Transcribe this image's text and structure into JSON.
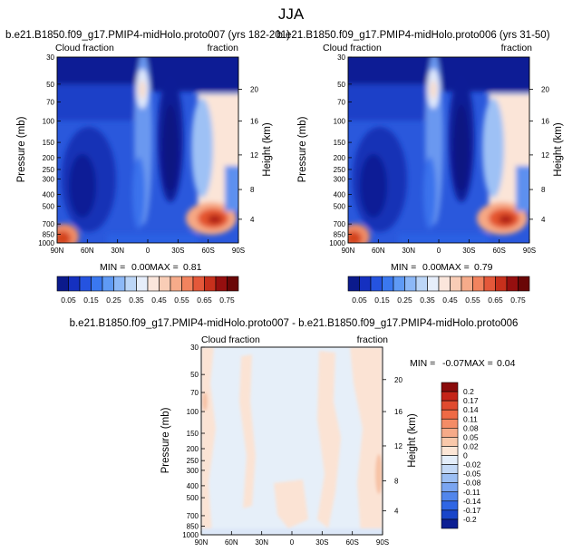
{
  "figure_title": "JJA",
  "chart_data": [
    {
      "type": "heatmap",
      "title": "b.e21.B1850.f09_g17.PMIP4-midHolo.proto007 (yrs 182-201)",
      "left_label": "Cloud fraction",
      "right_label": "fraction",
      "ylabel": "Pressure (mb)",
      "ylabel_right": "Height (km)",
      "x_ticks": [
        "90N",
        "60N",
        "30N",
        "0",
        "30S",
        "60S",
        "90S"
      ],
      "y_ticks": [
        "30",
        "50",
        "70",
        "100",
        "150",
        "200",
        "250",
        "300",
        "400",
        "500",
        "700",
        "850",
        "1000"
      ],
      "y_ticks_right": [
        "20",
        "16",
        "12",
        "8",
        "4"
      ],
      "min_label": "MIN =",
      "min": "0.00",
      "max_label": "MAX =",
      "max": "0.81",
      "zlim": [
        0,
        0.81
      ]
    },
    {
      "type": "heatmap",
      "title": "b.e21.B1850.f09_g17.PMIP4-midHolo.proto006 (yrs 31-50)",
      "left_label": "Cloud fraction",
      "right_label": "fraction",
      "ylabel": "Pressure (mb)",
      "ylabel_right": "Height (km)",
      "x_ticks": [
        "90N",
        "60N",
        "30N",
        "0",
        "30S",
        "60S",
        "90S"
      ],
      "y_ticks": [
        "30",
        "50",
        "70",
        "100",
        "150",
        "200",
        "250",
        "300",
        "400",
        "500",
        "700",
        "850",
        "1000"
      ],
      "y_ticks_right": [
        "20",
        "16",
        "12",
        "8",
        "4"
      ],
      "min_label": "MIN =",
      "min": "0.00",
      "max_label": "MAX =",
      "max": "0.79",
      "zlim": [
        0,
        0.79
      ]
    },
    {
      "type": "heatmap",
      "title": "b.e21.B1850.f09_g17.PMIP4-midHolo.proto007 - b.e21.B1850.f09_g17.PMIP4-midHolo.proto006",
      "left_label": "Cloud fraction",
      "right_label": "fraction",
      "ylabel": "Pressure (mb)",
      "ylabel_right": "Height (km)",
      "x_ticks": [
        "90N",
        "60N",
        "30N",
        "0",
        "30S",
        "60S",
        "90S"
      ],
      "y_ticks": [
        "30",
        "50",
        "70",
        "100",
        "150",
        "200",
        "250",
        "300",
        "400",
        "500",
        "700",
        "850",
        "1000"
      ],
      "y_ticks_right": [
        "20",
        "16",
        "12",
        "8",
        "4"
      ],
      "min_label": "MIN =",
      "min": "-0.07",
      "max_label": "MAX =",
      "max": "0.04",
      "zlim": [
        -0.07,
        0.04
      ]
    }
  ],
  "colorbar_top": {
    "labels": [
      "0.05",
      "0.15",
      "0.25",
      "0.35",
      "0.45",
      "0.55",
      "0.65",
      "0.75"
    ],
    "colors": [
      "#0b1a8c",
      "#1530c0",
      "#2553e0",
      "#3a78f0",
      "#5f9af5",
      "#8cb8f7",
      "#bcd6f7",
      "#e6eefb",
      "#fbe6dc",
      "#f9cdb6",
      "#f6ab8a",
      "#f2835e",
      "#e4583a",
      "#c7301c",
      "#960f0f",
      "#6a0606"
    ]
  },
  "colorbar_diff": {
    "labels": [
      "0.2",
      "0.17",
      "0.14",
      "0.11",
      "0.08",
      "0.05",
      "0.02",
      "0",
      "-0.02",
      "-0.05",
      "-0.08",
      "-0.11",
      "-0.14",
      "-0.17",
      "-0.2"
    ],
    "colors": [
      "#8a0b0b",
      "#c42418",
      "#e04a2e",
      "#ef6a45",
      "#f48c66",
      "#f6aa88",
      "#f9c8aa",
      "#fce6d6",
      "#e4eefa",
      "#c4d9f6",
      "#9cbff4",
      "#7aa5f1",
      "#5286ec",
      "#2f66e4",
      "#1845c9",
      "#0c1f93"
    ]
  }
}
